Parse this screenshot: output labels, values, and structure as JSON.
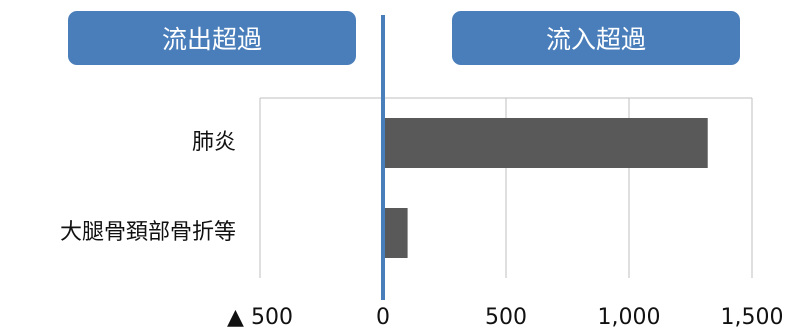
{
  "headers": {
    "left": "流出超過",
    "right": "流入超過"
  },
  "chart_data": {
    "type": "bar",
    "orientation": "horizontal",
    "categories": [
      "肺炎",
      "大腿骨頚部骨折等"
    ],
    "values": [
      1320,
      100
    ],
    "xlim": [
      -500,
      1500
    ],
    "x_ticks": [
      -500,
      0,
      500,
      1000,
      1500
    ],
    "x_tick_labels": [
      "▲ 500",
      "0",
      "500",
      "1,000",
      "1,500"
    ],
    "grid": "vertical",
    "bar_color": "#595959",
    "zero_line_color": "#4a7ebb",
    "header_color": "#4a7ebb"
  }
}
